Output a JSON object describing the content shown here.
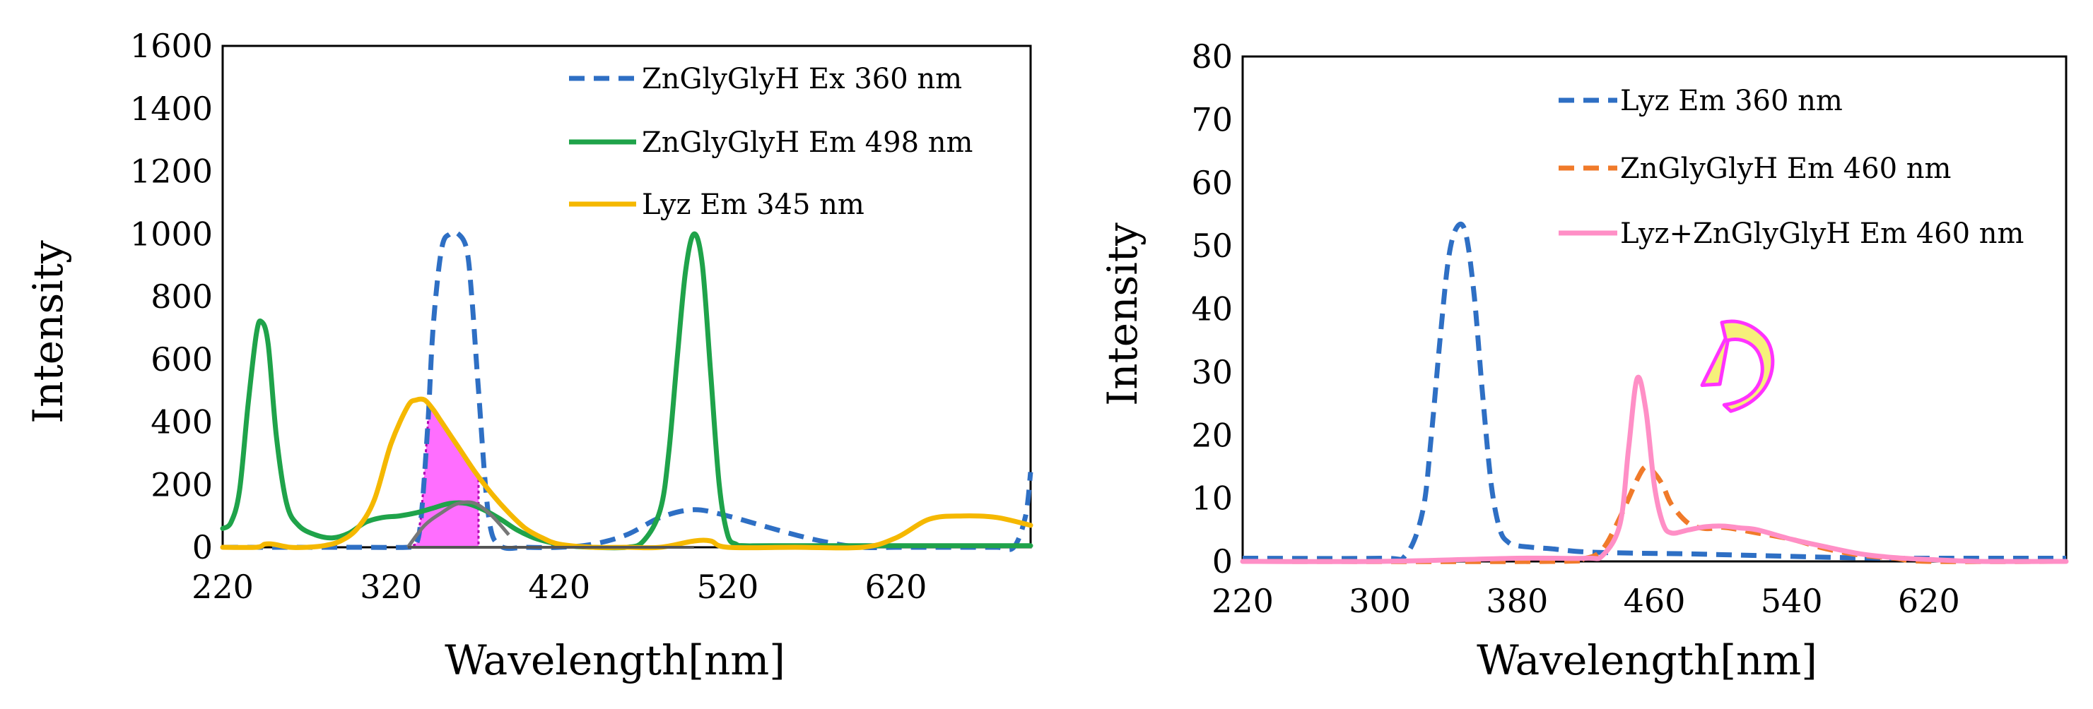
{
  "chart_data": [
    {
      "type": "line",
      "title": "",
      "xlabel": "Wavelength[nm]",
      "ylabel": "Intensity",
      "xlim": [
        220,
        700
      ],
      "ylim": [
        0,
        1600
      ],
      "xticks": [
        220,
        320,
        420,
        520,
        620
      ],
      "yticks": [
        0,
        200,
        400,
        600,
        800,
        1000,
        1200,
        1400,
        1600
      ],
      "legend_position": "top-right",
      "series": [
        {
          "name": "ZnGlyGlyH Ex 360 nm",
          "color": "#2E6FC4",
          "dash": "dashed",
          "x": [
            220,
            250,
            300,
            330,
            335,
            338,
            342,
            345,
            350,
            355,
            360,
            365,
            368,
            372,
            378,
            385,
            400,
            420,
            440,
            460,
            480,
            500,
            520,
            540,
            560,
            580,
            600,
            620,
            640,
            660,
            680,
            690,
            697,
            700
          ],
          "y": [
            0,
            0,
            0,
            0,
            10,
            100,
            400,
            700,
            950,
            1000,
            1000,
            950,
            800,
            500,
            100,
            5,
            0,
            0,
            10,
            40,
            95,
            120,
            100,
            70,
            40,
            15,
            0,
            0,
            0,
            0,
            0,
            0,
            100,
            240
          ]
        },
        {
          "name": "ZnGlyGlyH Em 498 nm",
          "color": "#1FA34A",
          "dash": "solid",
          "x": [
            220,
            225,
            230,
            235,
            240,
            243,
            247,
            252,
            258,
            265,
            275,
            285,
            295,
            305,
            315,
            325,
            335,
            345,
            355,
            365,
            375,
            385,
            395,
            405,
            415,
            425,
            440,
            460,
            470,
            480,
            485,
            490,
            495,
            500,
            505,
            510,
            515,
            520,
            525,
            530,
            545,
            600,
            650,
            700
          ],
          "y": [
            60,
            80,
            180,
            450,
            680,
            720,
            650,
            350,
            140,
            70,
            40,
            30,
            45,
            80,
            95,
            100,
            110,
            125,
            140,
            140,
            120,
            90,
            55,
            30,
            15,
            5,
            0,
            0,
            20,
            120,
            300,
            600,
            880,
            1000,
            900,
            550,
            200,
            40,
            10,
            5,
            5,
            5,
            5,
            5
          ]
        },
        {
          "name": "Lyz Em 345 nm",
          "color": "#F5B800",
          "dash": "solid",
          "x": [
            220,
            240,
            245,
            250,
            260,
            270,
            280,
            290,
            300,
            310,
            320,
            330,
            335,
            340,
            345,
            350,
            360,
            370,
            380,
            390,
            400,
            410,
            420,
            440,
            460,
            480,
            500,
            510,
            520,
            560,
            600,
            620,
            640,
            660,
            680,
            700
          ],
          "y": [
            0,
            0,
            10,
            10,
            0,
            0,
            5,
            20,
            60,
            150,
            330,
            450,
            470,
            470,
            440,
            400,
            320,
            240,
            170,
            110,
            60,
            30,
            10,
            0,
            0,
            0,
            20,
            20,
            0,
            0,
            0,
            30,
            90,
            100,
            95,
            70
          ]
        }
      ],
      "annotations": [
        {
          "type": "shaded-overlap",
          "x_range": [
            330,
            372
          ],
          "color": "#FF55FF"
        },
        {
          "type": "curve",
          "color": "#777777",
          "x": [
            330,
            340,
            350,
            360,
            370,
            380,
            390
          ],
          "y": [
            0,
            70,
            110,
            140,
            140,
            100,
            40
          ]
        },
        {
          "type": "baseline",
          "color": "#555555",
          "x": [
            330,
            500
          ],
          "y": [
            0,
            0
          ]
        }
      ]
    },
    {
      "type": "line",
      "title": "",
      "xlabel": "Wavelength[nm]",
      "ylabel": "Intensity",
      "xlim": [
        220,
        700
      ],
      "ylim": [
        0,
        80
      ],
      "xticks": [
        220,
        300,
        380,
        460,
        540,
        620
      ],
      "yticks": [
        0,
        10,
        20,
        30,
        40,
        50,
        60,
        70,
        80
      ],
      "legend_position": "top-right",
      "series": [
        {
          "name": "Lyz Em 360 nm",
          "color": "#2E6FC4",
          "dash": "dashed",
          "x": [
            220,
            300,
            315,
            325,
            330,
            335,
            340,
            345,
            350,
            355,
            360,
            365,
            370,
            375,
            380,
            390,
            400,
            420,
            450,
            480,
            510,
            540,
            570,
            600,
            620,
            700
          ],
          "y": [
            0.5,
            0.5,
            1,
            8,
            20,
            35,
            48,
            53,
            52,
            42,
            26,
            12,
            5,
            3,
            2.5,
            2.2,
            2,
            1.5,
            1.3,
            1.2,
            1,
            0.8,
            0.6,
            0.5,
            0.5,
            0.5
          ]
        },
        {
          "name": "ZnGlyGlyH Em 460 nm",
          "color": "#F07A2A",
          "dash": "dashed",
          "x": [
            220,
            400,
            420,
            430,
            440,
            450,
            455,
            460,
            465,
            470,
            480,
            490,
            500,
            510,
            520,
            540,
            560,
            580,
            600,
            620,
            700
          ],
          "y": [
            0,
            0,
            0.5,
            2,
            7,
            13,
            15,
            14,
            12,
            9,
            6,
            5.2,
            5.4,
            5,
            4.5,
            3.5,
            2,
            1,
            0.5,
            0,
            0
          ]
        },
        {
          "name": "Lyz+ZnGlyGlyH Em 460 nm",
          "color": "#FF8FC6",
          "dash": "solid",
          "x": [
            220,
            300,
            380,
            420,
            430,
            440,
            445,
            450,
            455,
            460,
            465,
            470,
            480,
            490,
            500,
            510,
            520,
            540,
            560,
            580,
            600,
            620,
            650,
            700
          ],
          "y": [
            0,
            0,
            0.5,
            0.5,
            1,
            6,
            18,
            29,
            24,
            12,
            6,
            4.5,
            5,
            5.5,
            5.6,
            5.3,
            5,
            3.5,
            2.3,
            1.2,
            0.6,
            0.3,
            0,
            0
          ]
        }
      ],
      "annotations": [
        {
          "type": "arrow",
          "shape": "curved",
          "color": "#FF33FF",
          "fill": "#F6F07A"
        }
      ]
    }
  ]
}
